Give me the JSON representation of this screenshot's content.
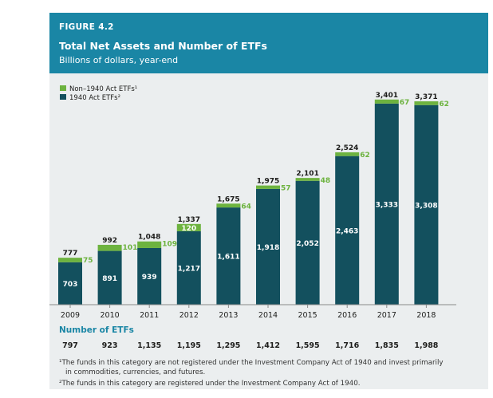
{
  "header": {
    "figure_label": "FIGURE 4.2",
    "title": "Total Net Assets and Number of ETFs",
    "subtitle": "Billions of dollars, year-end"
  },
  "colors": {
    "header_bg": "#1a86a5",
    "panel_bg": "#ebeeef",
    "non1940": "#6db33f",
    "act1940": "#13505e"
  },
  "chart_data": {
    "type": "bar",
    "stacked": true,
    "categories": [
      "2009",
      "2010",
      "2011",
      "2012",
      "2013",
      "2014",
      "2015",
      "2016",
      "2017",
      "2018"
    ],
    "series": [
      {
        "name": "1940 Act ETFs²",
        "color": "#13505e",
        "values": [
          703,
          891,
          939,
          1217,
          1611,
          1918,
          2052,
          2463,
          3333,
          3308
        ],
        "labels": [
          "703",
          "891",
          "939",
          "1,217",
          "1,611",
          "1,918",
          "2,052",
          "2,463",
          "3,333",
          "3,308"
        ]
      },
      {
        "name": "Non–1940 Act ETFs¹",
        "color": "#6db33f",
        "values": [
          75,
          101,
          109,
          120,
          64,
          57,
          48,
          62,
          67,
          62
        ],
        "labels": [
          "75",
          "101",
          "109",
          "120",
          "64",
          "57",
          "48",
          "62",
          "67",
          "62"
        ]
      }
    ],
    "totals": [
      777,
      992,
      1048,
      1337,
      1675,
      1975,
      2101,
      2524,
      3401,
      3371
    ],
    "total_labels": [
      "777",
      "992",
      "1,048",
      "1,337",
      "1,675",
      "1,975",
      "2,101",
      "2,524",
      "3,401",
      "3,371"
    ],
    "ylim": [
      0,
      3450
    ],
    "grid": false,
    "legend_position": "top-left",
    "xlabel": "",
    "ylabel": ""
  },
  "number_of_etfs": {
    "label": "Number of ETFs",
    "values": [
      "797",
      "923",
      "1,135",
      "1,195",
      "1,295",
      "1,412",
      "1,595",
      "1,716",
      "1,835",
      "1,988"
    ]
  },
  "footnotes": {
    "note1_line1": "¹The funds in this category are not registered under the Investment Company Act of 1940 and invest primarily",
    "note1_line2": "in commodities, currencies, and futures.",
    "note2": "²The funds in this category are registered under the Investment Company Act of 1940."
  }
}
